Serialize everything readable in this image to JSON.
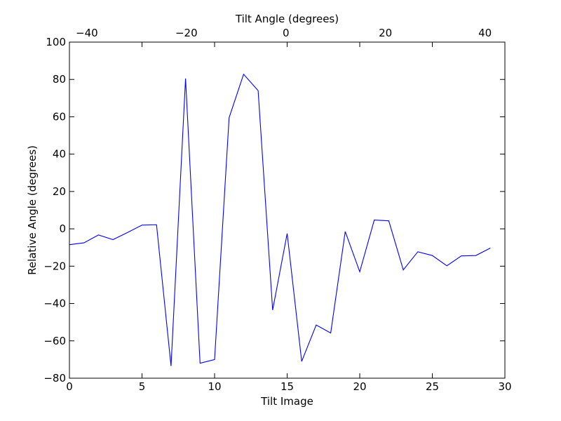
{
  "chart_data": {
    "type": "line",
    "title": "",
    "xlabel": "Tilt Image",
    "ylabel": "Relative Angle (degrees)",
    "top_xlabel": "Tilt Angle (degrees)",
    "xlim": [
      0,
      30
    ],
    "ylim": [
      -80,
      100
    ],
    "top_xlim": [
      -43.5,
      44
    ],
    "x_ticks": [
      0,
      5,
      10,
      15,
      20,
      25,
      30
    ],
    "y_ticks": [
      -80,
      -60,
      -40,
      -20,
      0,
      20,
      40,
      60,
      80,
      100
    ],
    "top_x_ticks": [
      -40,
      -20,
      0,
      20,
      40
    ],
    "x_tick_labels": [
      "0",
      "5",
      "10",
      "15",
      "20",
      "25",
      "30"
    ],
    "y_tick_labels": [
      "−80",
      "−60",
      "−40",
      "−20",
      "0",
      "20",
      "40",
      "60",
      "80",
      "100"
    ],
    "top_x_tick_labels": [
      "−40",
      "−20",
      "0",
      "20",
      "40"
    ],
    "grid": false,
    "line_color": "#0000ff",
    "series": [
      {
        "x": [
          0,
          1,
          2,
          3,
          4,
          5,
          6,
          7,
          8,
          9,
          10,
          11,
          12,
          13,
          14,
          15,
          16,
          17,
          18,
          19,
          20,
          21,
          22,
          23,
          24,
          25,
          26,
          27,
          28,
          29
        ],
        "values": [
          -8.5,
          -7.5,
          -3.3,
          -5.8,
          -2.0,
          2.0,
          2.2,
          -73.5,
          80.5,
          -72.0,
          -70.0,
          59.5,
          82.8,
          74.0,
          -43.5,
          -2.5,
          -71.0,
          -51.5,
          -55.8,
          -1.5,
          -23.0,
          4.7,
          4.3,
          -22.0,
          -12.3,
          -14.3,
          -19.8,
          -14.5,
          -14.3,
          -10.3
        ]
      }
    ]
  }
}
